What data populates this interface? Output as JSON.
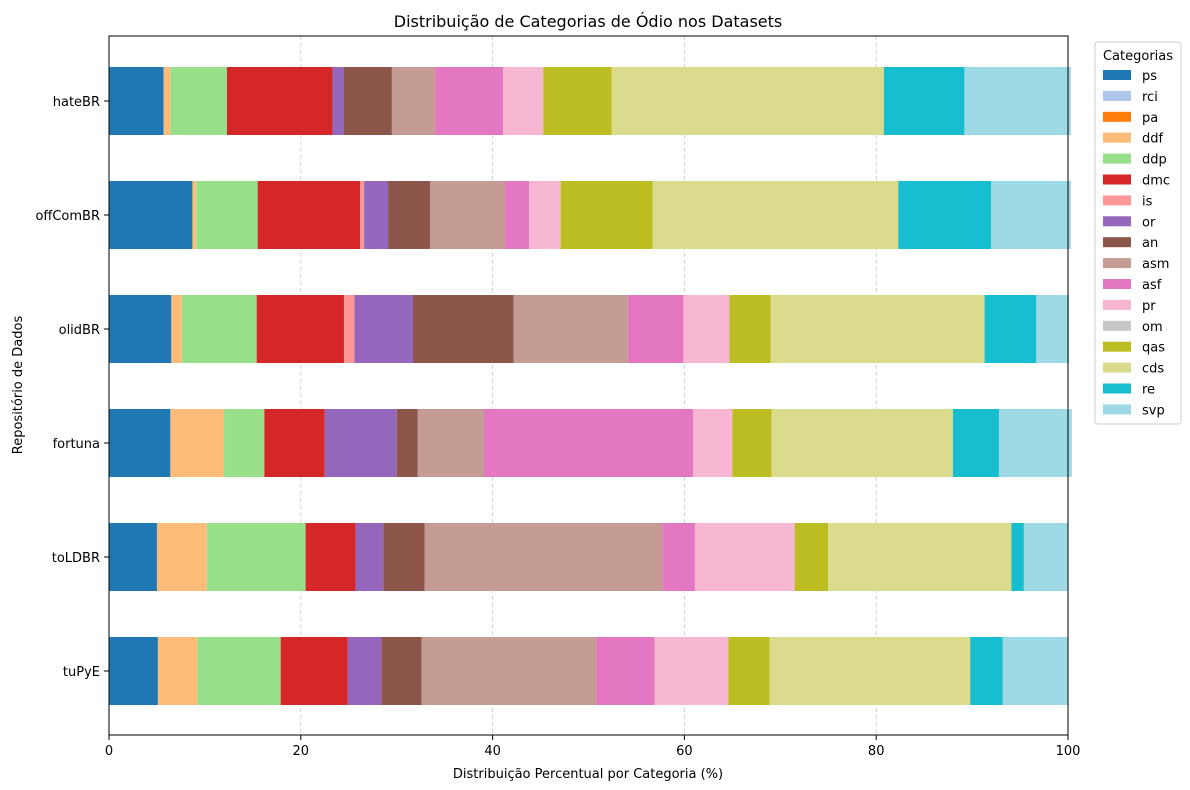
{
  "chart_data": {
    "type": "bar",
    "orientation": "horizontal",
    "stacked": true,
    "title": "Distribuição de Categorias de Ódio nos Datasets",
    "xlabel": "Distribuição Percentual por Categoria (%)",
    "ylabel": "Repositório de Dados",
    "xlim": [
      0,
      100
    ],
    "xticks": [
      "0",
      "20",
      "40",
      "60",
      "80",
      "100"
    ],
    "grid": "vertical dashed",
    "legend_title": "Categorias",
    "legend_position": "outside right",
    "categories": [
      "hateBR",
      "offComBR",
      "olidBR",
      "fortuna",
      "toLDBR",
      "tuPyE"
    ],
    "series": [
      {
        "name": "ps",
        "color": "#1f77b4",
        "values": [
          5.7,
          8.7,
          6.5,
          6.4,
          5.0,
          5.1
        ]
      },
      {
        "name": "rci",
        "color": "#aec7e8",
        "values": [
          0,
          0,
          0,
          0,
          0,
          0
        ]
      },
      {
        "name": "pa",
        "color": "#ff7f0e",
        "values": [
          0,
          0,
          0,
          0,
          0,
          0
        ]
      },
      {
        "name": "ddf",
        "color": "#ffbb78",
        "values": [
          0.7,
          0.4,
          1.1,
          5.6,
          5.2,
          4.1
        ]
      },
      {
        "name": "ddp",
        "color": "#98df8a",
        "values": [
          5.9,
          6.4,
          7.8,
          4.2,
          10.3,
          8.7
        ]
      },
      {
        "name": "dmc",
        "color": "#d62728",
        "values": [
          11.0,
          10.7,
          9.1,
          6.3,
          5.2,
          7.0
        ]
      },
      {
        "name": "is",
        "color": "#ff9896",
        "values": [
          0,
          0.4,
          1.1,
          0,
          0,
          0
        ]
      },
      {
        "name": "or",
        "color": "#9467bd",
        "values": [
          1.2,
          2.5,
          6.1,
          7.5,
          2.9,
          3.5
        ]
      },
      {
        "name": "an",
        "color": "#8c564b",
        "values": [
          5.0,
          4.4,
          10.5,
          2.2,
          4.3,
          4.2
        ]
      },
      {
        "name": "asm",
        "color": "#c49c94",
        "values": [
          4.5,
          7.8,
          11.9,
          6.9,
          24.8,
          18.2
        ]
      },
      {
        "name": "asf",
        "color": "#e377c2",
        "values": [
          7.1,
          2.5,
          5.8,
          21.8,
          3.4,
          6.1
        ]
      },
      {
        "name": "pr",
        "color": "#f7b6d2",
        "values": [
          4.2,
          3.3,
          4.8,
          4.1,
          10.4,
          7.7
        ]
      },
      {
        "name": "om",
        "color": "#c7c7c7",
        "values": [
          0,
          0,
          0,
          0,
          0,
          0
        ]
      },
      {
        "name": "qas",
        "color": "#bcbd22",
        "values": [
          7.1,
          9.6,
          4.3,
          4.1,
          3.5,
          4.3
        ]
      },
      {
        "name": "cds",
        "color": "#dbdb8d",
        "values": [
          28.4,
          25.6,
          22.3,
          18.9,
          19.1,
          20.9
        ]
      },
      {
        "name": "re",
        "color": "#17becf",
        "values": [
          8.4,
          9.7,
          5.4,
          4.8,
          1.3,
          3.4
        ]
      },
      {
        "name": "svp",
        "color": "#9edae5",
        "values": [
          11.1,
          8.3,
          3.4,
          7.6,
          4.6,
          6.8
        ]
      }
    ]
  }
}
